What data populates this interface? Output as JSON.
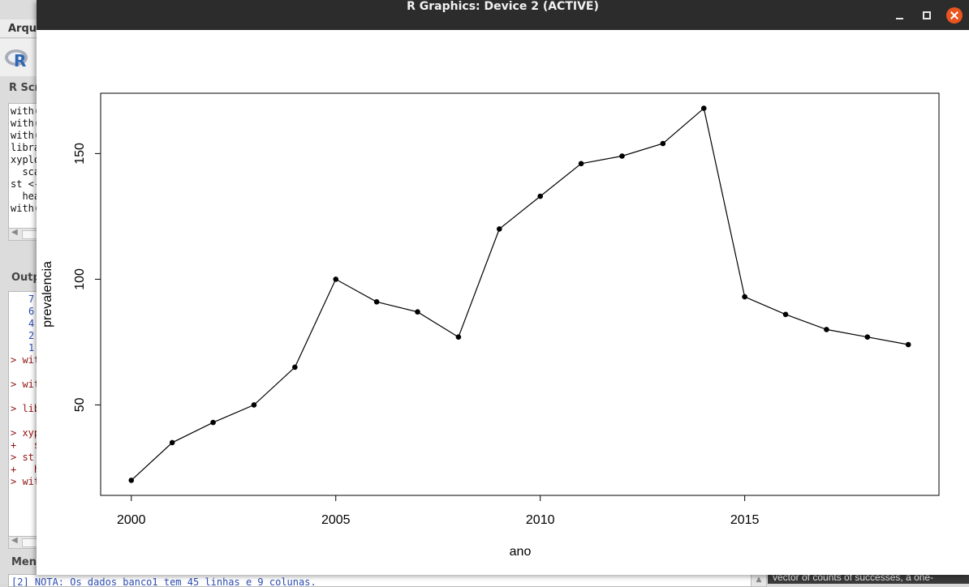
{
  "background_app": {
    "menubar_label": "Arqui",
    "script_label": "R Scri",
    "script_lines": [
      "with(",
      "with(",
      "with(",
      "libra",
      "xyplo",
      "  sca",
      "st <-",
      "  hea",
      "with("
    ],
    "output_label": "Outp",
    "output_blue_lines": [
      "7",
      "6",
      "4",
      "2",
      "1"
    ],
    "output_red_lines": [
      "> wit",
      "> wit",
      "> lib",
      "> xyp\n+   s",
      "> st \n+   h",
      "> wit"
    ],
    "messages_label": "Mens",
    "message_text": "[2] NOTA: Os dados banco1 tem 45 linhas e 9 colunas.",
    "help_text": "vector of counts of successes, a one-"
  },
  "graphics_window": {
    "title": "R Graphics: Device 2 (ACTIVE)"
  },
  "chart_data": {
    "type": "line",
    "xlabel": "ano",
    "ylabel": "prevalencia",
    "x": [
      2000,
      2001,
      2002,
      2003,
      2004,
      2005,
      2006,
      2007,
      2008,
      2009,
      2010,
      2011,
      2012,
      2013,
      2014,
      2015,
      2016,
      2017,
      2018,
      2019
    ],
    "y": [
      20,
      35,
      43,
      50,
      65,
      100,
      91,
      87,
      77,
      120,
      133,
      146,
      149,
      154,
      168,
      93,
      86,
      80,
      77,
      74
    ],
    "xticks": [
      2000,
      2005,
      2010,
      2015
    ],
    "yticks": [
      50,
      100,
      150
    ],
    "xlim": [
      1999.25,
      2019.75
    ],
    "ylim": [
      14,
      174
    ],
    "markers": "filled-circle",
    "line_color": "#000000",
    "grid": false
  }
}
